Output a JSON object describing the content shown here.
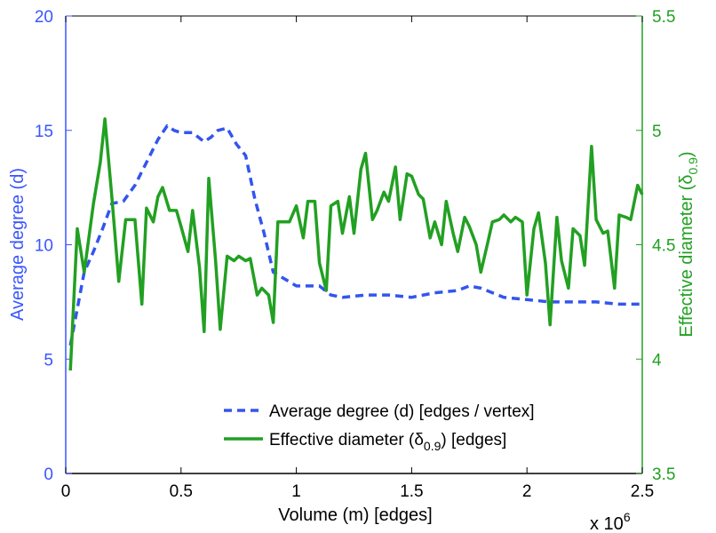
{
  "chart_data": {
    "type": "line",
    "xlabel": "Volume (m) [edges]",
    "x_multiplier_label": "x 10",
    "x_multiplier_exponent": "6",
    "xlim": [
      0,
      2.5
    ],
    "x_ticks": [
      "0",
      "0.5",
      "1",
      "1.5",
      "2",
      "2.5"
    ],
    "left_axis": {
      "label": "Average degree (d)",
      "ylim": [
        0,
        20
      ],
      "ticks": [
        "0",
        "5",
        "10",
        "15",
        "20"
      ],
      "color": "#3a55ff"
    },
    "right_axis": {
      "label_main": "Effective diameter (δ",
      "label_sub": "0.9",
      "label_end": ")",
      "ylim": [
        3.5,
        5.5
      ],
      "ticks": [
        "3.5",
        "4",
        "4.5",
        "5",
        "5.5"
      ],
      "color": "#22a022"
    },
    "legend": {
      "location": "lower-right",
      "entries": [
        {
          "text": "Average degree (d) [edges / vertex]"
        },
        {
          "main": "Effective diameter (δ",
          "sub": "0.9",
          "end": ") [edges]"
        }
      ]
    },
    "series": [
      {
        "name": "Average degree (d) [edges / vertex]",
        "axis": "left",
        "style": "dashed",
        "color": "#3355ee",
        "x": [
          0.02,
          0.05,
          0.08,
          0.12,
          0.16,
          0.2,
          0.25,
          0.3,
          0.35,
          0.4,
          0.44,
          0.47,
          0.5,
          0.55,
          0.6,
          0.63,
          0.66,
          0.7,
          0.74,
          0.78,
          0.82,
          0.86,
          0.9,
          0.95,
          1.0,
          1.05,
          1.1,
          1.15,
          1.2,
          1.3,
          1.4,
          1.5,
          1.6,
          1.7,
          1.75,
          1.8,
          1.9,
          2.0,
          2.1,
          2.2,
          2.3,
          2.4,
          2.5
        ],
        "values": [
          5.6,
          7.2,
          8.8,
          9.7,
          10.7,
          11.8,
          11.9,
          12.6,
          13.6,
          14.6,
          15.2,
          15.0,
          14.9,
          14.9,
          14.5,
          14.7,
          15.0,
          15.1,
          14.4,
          13.9,
          12.0,
          10.5,
          8.8,
          8.5,
          8.2,
          8.2,
          8.2,
          7.8,
          7.7,
          7.8,
          7.8,
          7.7,
          7.9,
          8.0,
          8.2,
          8.1,
          7.7,
          7.6,
          7.5,
          7.5,
          7.5,
          7.4,
          7.4
        ]
      },
      {
        "name": "Effective diameter (δ0.9) [edges]",
        "axis": "right",
        "style": "solid",
        "color": "#22a022",
        "x": [
          0.02,
          0.05,
          0.08,
          0.12,
          0.15,
          0.17,
          0.2,
          0.23,
          0.26,
          0.3,
          0.33,
          0.35,
          0.38,
          0.4,
          0.42,
          0.45,
          0.48,
          0.5,
          0.53,
          0.55,
          0.58,
          0.6,
          0.62,
          0.65,
          0.67,
          0.7,
          0.73,
          0.75,
          0.78,
          0.8,
          0.83,
          0.85,
          0.88,
          0.9,
          0.92,
          0.95,
          0.97,
          1.0,
          1.03,
          1.05,
          1.08,
          1.1,
          1.13,
          1.15,
          1.18,
          1.2,
          1.23,
          1.25,
          1.28,
          1.3,
          1.33,
          1.35,
          1.38,
          1.4,
          1.43,
          1.45,
          1.48,
          1.5,
          1.53,
          1.55,
          1.58,
          1.6,
          1.63,
          1.65,
          1.68,
          1.7,
          1.73,
          1.75,
          1.78,
          1.8,
          1.83,
          1.85,
          1.88,
          1.9,
          1.93,
          1.95,
          1.98,
          2.0,
          2.03,
          2.05,
          2.08,
          2.1,
          2.13,
          2.15,
          2.18,
          2.2,
          2.23,
          2.25,
          2.28,
          2.3,
          2.33,
          2.35,
          2.38,
          2.4,
          2.43,
          2.45,
          2.48,
          2.5
        ],
        "values": [
          3.95,
          4.57,
          4.38,
          4.68,
          4.86,
          5.05,
          4.71,
          4.34,
          4.61,
          4.61,
          4.24,
          4.66,
          4.6,
          4.71,
          4.75,
          4.65,
          4.65,
          4.58,
          4.47,
          4.65,
          4.4,
          4.12,
          4.79,
          4.43,
          4.13,
          4.45,
          4.43,
          4.45,
          4.43,
          4.44,
          4.28,
          4.31,
          4.28,
          4.16,
          4.6,
          4.6,
          4.6,
          4.67,
          4.53,
          4.69,
          4.69,
          4.42,
          4.3,
          4.67,
          4.69,
          4.55,
          4.71,
          4.55,
          4.83,
          4.9,
          4.61,
          4.65,
          4.73,
          4.69,
          4.84,
          4.61,
          4.81,
          4.8,
          4.72,
          4.7,
          4.53,
          4.6,
          4.5,
          4.69,
          4.55,
          4.47,
          4.62,
          4.58,
          4.5,
          4.38,
          4.51,
          4.6,
          4.61,
          4.63,
          4.6,
          4.62,
          4.6,
          4.28,
          4.57,
          4.64,
          4.42,
          4.15,
          4.62,
          4.43,
          4.31,
          4.57,
          4.54,
          4.41,
          4.93,
          4.61,
          4.55,
          4.56,
          4.31,
          4.63,
          4.62,
          4.61,
          4.76,
          4.72
        ]
      }
    ]
  }
}
